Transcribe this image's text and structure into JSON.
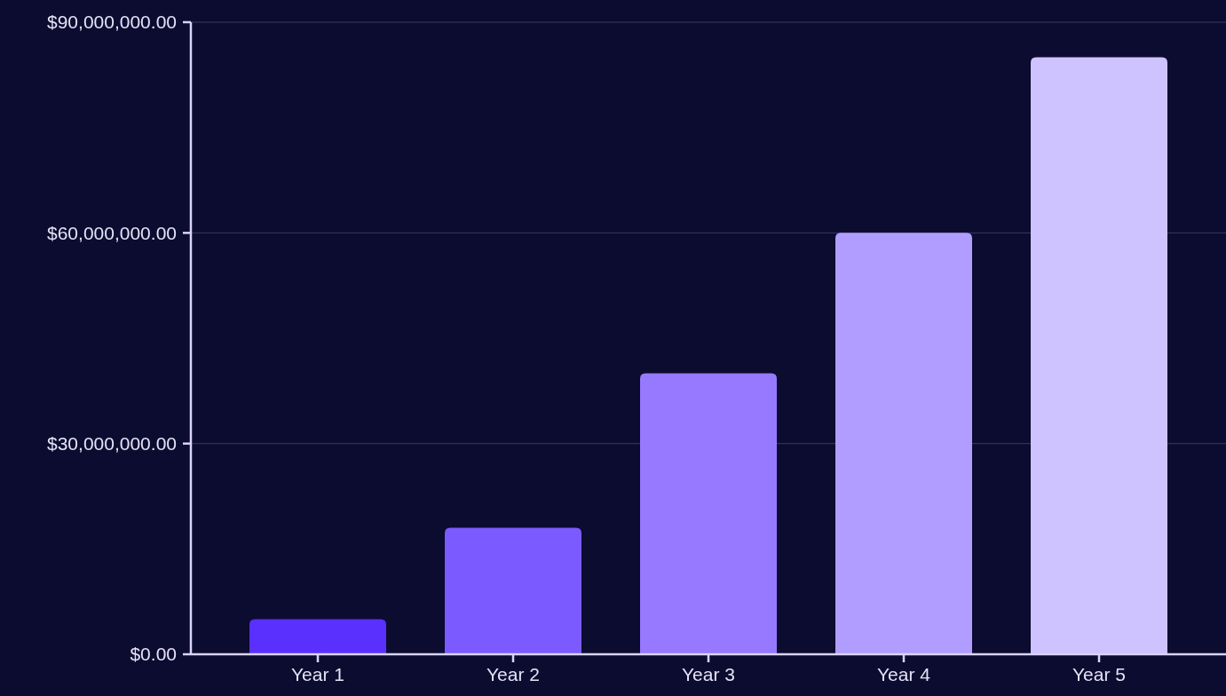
{
  "chart_data": {
    "type": "bar",
    "categories": [
      "Year 1",
      "Year 2",
      "Year 3",
      "Year 4",
      "Year 5"
    ],
    "values": [
      5000000,
      18000000,
      40000000,
      60000000,
      85000000
    ],
    "colors": [
      "#5a30ff",
      "#7b5aff",
      "#9679ff",
      "#b19dff",
      "#cec2ff"
    ],
    "ylim": [
      0,
      90000000
    ],
    "yticks": [
      {
        "value": 0,
        "label": "$0.00"
      },
      {
        "value": 30000000,
        "label": "$30,000,000.00"
      },
      {
        "value": 60000000,
        "label": "$60,000,000.00"
      },
      {
        "value": 90000000,
        "label": "$90,000,000.00"
      }
    ],
    "grid": "y"
  }
}
